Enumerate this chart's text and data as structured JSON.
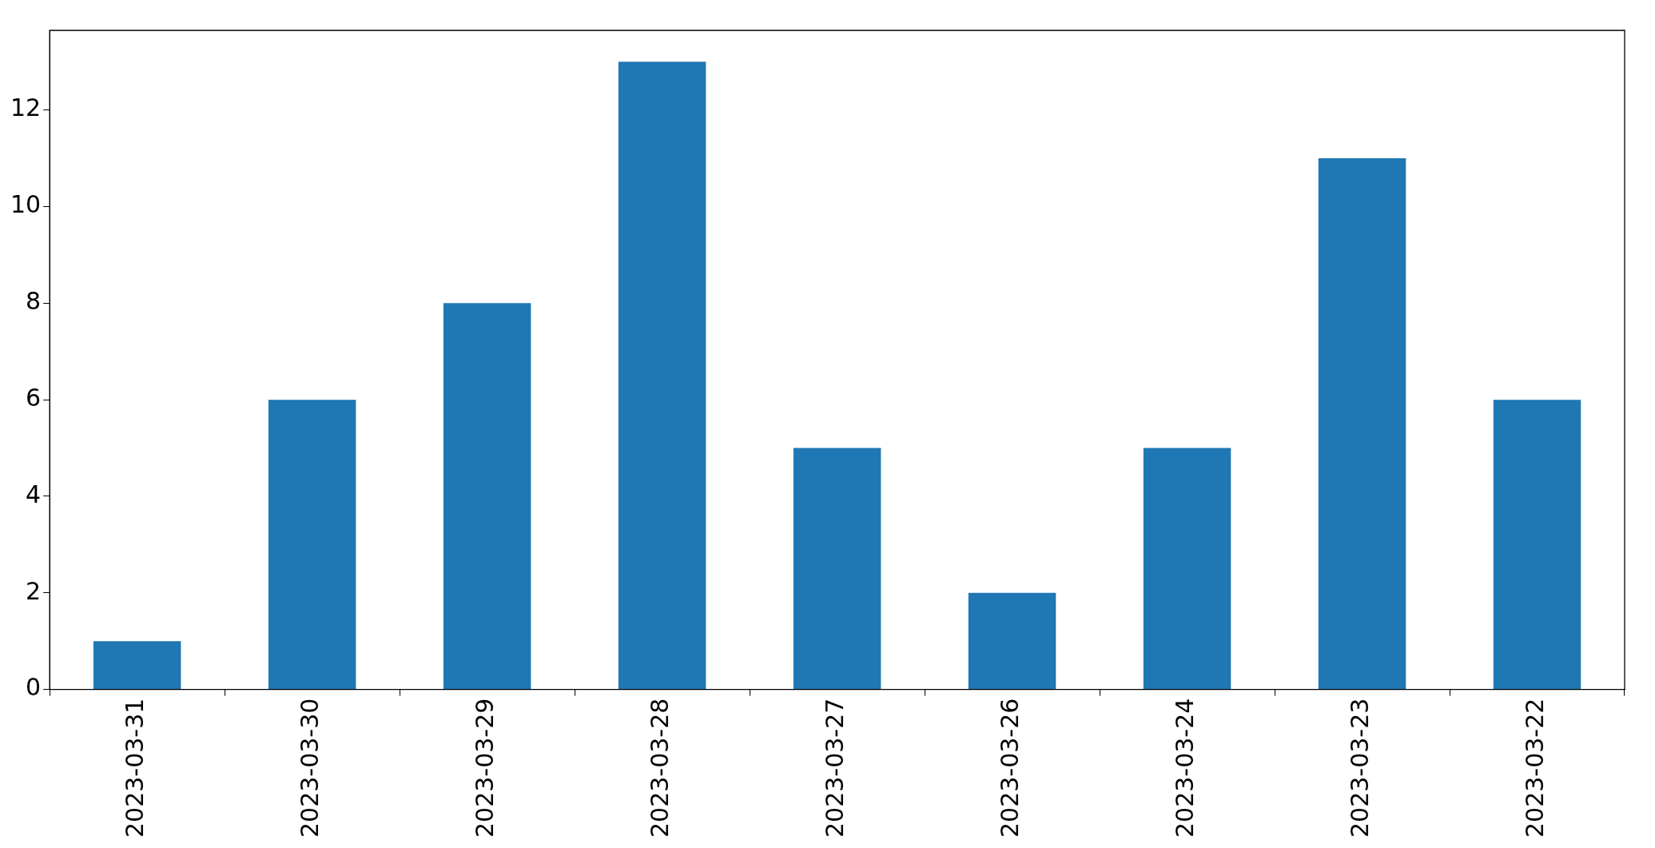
{
  "chart_data": {
    "type": "bar",
    "categories": [
      "2023-03-31",
      "2023-03-30",
      "2023-03-29",
      "2023-03-28",
      "2023-03-27",
      "2023-03-26",
      "2023-03-24",
      "2023-03-23",
      "2023-03-22"
    ],
    "values": [
      1,
      6,
      8,
      13,
      5,
      2,
      5,
      11,
      6
    ],
    "color": "#1f77b4",
    "ylim": [
      0,
      13.65
    ],
    "yticks": [
      0,
      2,
      4,
      6,
      8,
      10,
      12
    ],
    "grid": false,
    "legend": false
  }
}
